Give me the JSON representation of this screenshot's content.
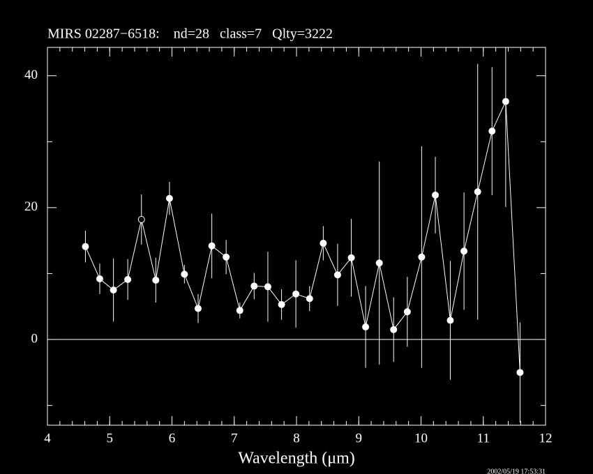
{
  "chart_data": {
    "type": "errorbar",
    "title": "MIRS 02287−6518:    nd=28   class=7   Qlty=3222",
    "xlabel": "Wavelength (μm)",
    "timestamp": "2002/05/19 17:53:31",
    "x": [
      4.61,
      4.84,
      5.06,
      5.29,
      5.51,
      5.74,
      5.96,
      6.2,
      6.42,
      6.64,
      6.87,
      7.09,
      7.32,
      7.54,
      7.76,
      7.99,
      8.21,
      8.43,
      8.66,
      8.88,
      9.11,
      9.33,
      9.56,
      9.78,
      10.01,
      10.23,
      10.47,
      10.69,
      10.91,
      11.14,
      11.36,
      11.59
    ],
    "values": [
      14.1,
      9.2,
      7.5,
      9.1,
      18.2,
      9.0,
      21.4,
      9.9,
      4.7,
      14.2,
      12.5,
      4.4,
      8.1,
      8.0,
      5.3,
      6.9,
      6.2,
      14.6,
      9.8,
      12.4,
      1.9,
      11.6,
      1.5,
      4.2,
      12.5,
      21.9,
      2.9,
      13.4,
      22.4,
      31.6,
      36.1,
      -5.0
    ],
    "errors": [
      2.4,
      2.3,
      4.8,
      3.1,
      3.8,
      3.4,
      2.5,
      1.4,
      2.2,
      4.9,
      2.6,
      1.2,
      2.0,
      5.3,
      2.3,
      5.1,
      1.9,
      2.6,
      4.7,
      5.9,
      6.2,
      15.4,
      4.9,
      5.3,
      16.8,
      5.8,
      9.0,
      8.9,
      19.4,
      9.7,
      16.0,
      7.6
    ],
    "open_points": [
      4
    ],
    "color": "#ffffff",
    "xlim": [
      4,
      12
    ],
    "xticks": [
      4,
      5,
      6,
      7,
      8,
      9,
      10,
      11,
      12
    ],
    "xminor_step": 0.2,
    "ylim": [
      -13,
      44.3
    ],
    "yticks": [
      0,
      20,
      40
    ],
    "yminor": [
      -10,
      10,
      30
    ],
    "hline": 0
  }
}
